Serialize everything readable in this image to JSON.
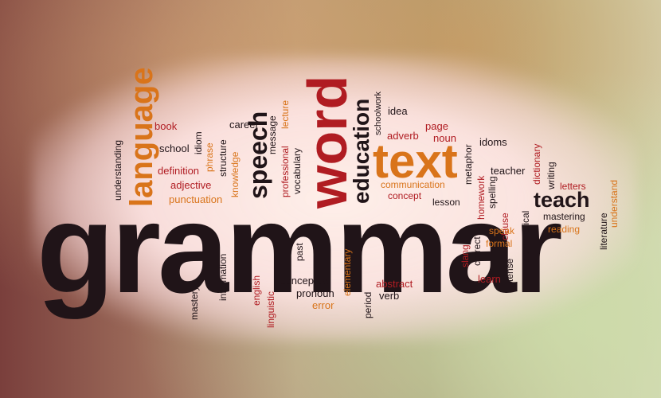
{
  "words": {
    "grammar": "grammar",
    "word": "word",
    "text": "text",
    "language": "language",
    "speech": "speech",
    "education": "education",
    "teach": "teach",
    "book": "book",
    "career": "career",
    "school": "school",
    "idiom": "idiom",
    "definition": "definition",
    "adjective": "adjective",
    "punctuation": "punctuation",
    "understanding": "understanding",
    "phrase": "phrase",
    "structure": "structure",
    "knowledge": "knowledge",
    "message": "message",
    "lecture": "lecture",
    "professional": "professional",
    "vocabulary": "vocabulary",
    "schoolwork": "schoolwork",
    "idea": "idea",
    "adverb": "adverb",
    "page": "page",
    "noun": "noun",
    "idoms": "idoms",
    "communication": "communication",
    "concept": "concept",
    "lesson": "lesson",
    "metaphor": "metaphor",
    "homework": "homework",
    "spelling": "spelling",
    "teacher": "teacher",
    "dictionary": "dictionary",
    "writing": "writing",
    "letters": "letters",
    "understand": "understand",
    "mastering": "mastering",
    "reading": "reading",
    "literature": "literature",
    "grammatical": "grammatical",
    "clause": "clause",
    "speak": "speak",
    "formal": "formal",
    "tense": "tense",
    "correct": "correct",
    "slang": "slang",
    "learn": "learn",
    "mastery": "mastery",
    "information": "information",
    "english": "english",
    "linguistic": "linguistic",
    "past": "past",
    "conceptual": "conceptual",
    "pronoun": "pronoun",
    "error": "error",
    "elementary": "elementary",
    "period": "period",
    "abstract": "abstract",
    "verb": "verb"
  }
}
